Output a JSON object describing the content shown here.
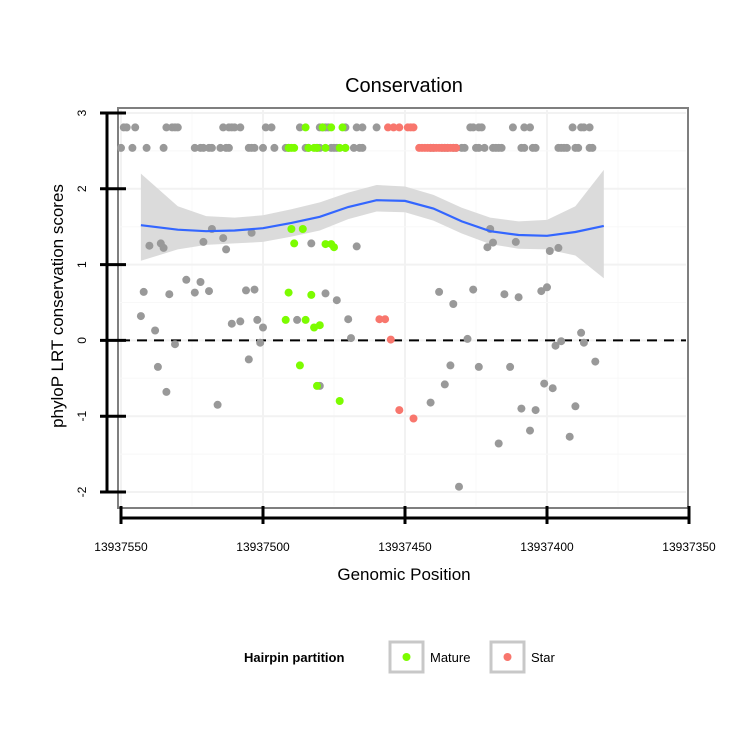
{
  "chart_data": {
    "type": "scatter",
    "title": "Conservation",
    "xlabel": "Genomic Position",
    "ylabel": "phyloP LRT conservation scores",
    "xlim": [
      13937550,
      13937350
    ],
    "x_reversed": true,
    "ylim": [
      -2.2,
      3.05
    ],
    "x_ticks": [
      13937550,
      13937500,
      13937450,
      13937400,
      13937350
    ],
    "x_tick_labels": [
      "13937550",
      "13937500",
      "13937450",
      "13937400",
      "13937350"
    ],
    "y_ticks": [
      -2,
      -1,
      0,
      1,
      2,
      3
    ],
    "y_tick_labels": [
      "-2",
      "-1",
      "0",
      "1",
      "2",
      "3"
    ],
    "reference_line": {
      "y": 0,
      "style": "dashed"
    },
    "legend": {
      "title": "Hairpin partition",
      "entries": [
        {
          "label": "Mature",
          "color": "#7cfc00"
        },
        {
          "label": "Star",
          "color": "#f8766d"
        }
      ]
    },
    "colors": {
      "other": "#999999",
      "mature": "#7cfc00",
      "star": "#f8766d",
      "smooth": "#3366ff",
      "band": "#d9d9d9"
    },
    "series": [
      {
        "name": "Other",
        "points": [
          [
            13937543,
            0.32
          ],
          [
            13937542,
            0.64
          ],
          [
            13937540,
            1.25
          ],
          [
            13937538,
            0.13
          ],
          [
            13937537,
            -0.35
          ],
          [
            13937536,
            1.28
          ],
          [
            13937535,
            1.22
          ],
          [
            13937534,
            -0.68
          ],
          [
            13937533,
            0.61
          ],
          [
            13937531,
            -0.05
          ],
          [
            13937527,
            0.8
          ],
          [
            13937524,
            0.63
          ],
          [
            13937522,
            0.77
          ],
          [
            13937521,
            1.3
          ],
          [
            13937519,
            0.65
          ],
          [
            13937518,
            1.47
          ],
          [
            13937516,
            -0.85
          ],
          [
            13937514,
            1.35
          ],
          [
            13937513,
            1.2
          ],
          [
            13937511,
            0.22
          ],
          [
            13937508,
            0.25
          ],
          [
            13937506,
            0.66
          ],
          [
            13937505,
            -0.25
          ],
          [
            13937504,
            1.42
          ],
          [
            13937503,
            0.67
          ],
          [
            13937502,
            0.27
          ],
          [
            13937501,
            -0.03
          ],
          [
            13937500,
            0.17
          ],
          [
            13937488,
            0.27
          ],
          [
            13937483,
            1.28
          ],
          [
            13937480,
            -0.6
          ],
          [
            13937478,
            0.62
          ],
          [
            13937474,
            0.53
          ],
          [
            13937470,
            0.28
          ],
          [
            13937469,
            0.03
          ],
          [
            13937467,
            1.24
          ],
          [
            13937441,
            -0.82
          ],
          [
            13937438,
            0.64
          ],
          [
            13937436,
            -0.58
          ],
          [
            13937434,
            -0.33
          ],
          [
            13937433,
            0.48
          ],
          [
            13937431,
            -1.93
          ],
          [
            13937428,
            0.02
          ],
          [
            13937426,
            0.67
          ],
          [
            13937424,
            -0.35
          ],
          [
            13937421,
            1.23
          ],
          [
            13937420,
            1.47
          ],
          [
            13937419,
            1.29
          ],
          [
            13937417,
            -1.36
          ],
          [
            13937415,
            0.61
          ],
          [
            13937413,
            -0.35
          ],
          [
            13937411,
            1.3
          ],
          [
            13937410,
            0.57
          ],
          [
            13937409,
            -0.9
          ],
          [
            13937406,
            -1.19
          ],
          [
            13937404,
            -0.92
          ],
          [
            13937402,
            0.65
          ],
          [
            13937401,
            -0.57
          ],
          [
            13937400,
            0.7
          ],
          [
            13937399,
            1.18
          ],
          [
            13937398,
            -0.63
          ],
          [
            13937397,
            -0.07
          ],
          [
            13937396,
            1.22
          ],
          [
            13937395,
            -0.01
          ],
          [
            13937392,
            -1.27
          ],
          [
            13937390,
            -0.87
          ],
          [
            13937388,
            0.1
          ],
          [
            13937387,
            -0.03
          ],
          [
            13937383,
            -0.28
          ],
          [
            13937549,
            2.81
          ],
          [
            13937548,
            2.81
          ],
          [
            13937545,
            2.81
          ],
          [
            13937534,
            2.81
          ],
          [
            13937532,
            2.81
          ],
          [
            13937531,
            2.81
          ],
          [
            13937530,
            2.81
          ],
          [
            13937514,
            2.81
          ],
          [
            13937512,
            2.81
          ],
          [
            13937511,
            2.81
          ],
          [
            13937510,
            2.81
          ],
          [
            13937508,
            2.81
          ],
          [
            13937499,
            2.81
          ],
          [
            13937497,
            2.81
          ],
          [
            13937487,
            2.81
          ],
          [
            13937480,
            2.81
          ],
          [
            13937479,
            2.81
          ],
          [
            13937478,
            2.81
          ],
          [
            13937477,
            2.81
          ],
          [
            13937471,
            2.81
          ],
          [
            13937467,
            2.81
          ],
          [
            13937465,
            2.81
          ],
          [
            13937460,
            2.81
          ],
          [
            13937427,
            2.81
          ],
          [
            13937426,
            2.81
          ],
          [
            13937424,
            2.81
          ],
          [
            13937423,
            2.81
          ],
          [
            13937412,
            2.81
          ],
          [
            13937408,
            2.81
          ],
          [
            13937406,
            2.81
          ],
          [
            13937391,
            2.81
          ],
          [
            13937388,
            2.81
          ],
          [
            13937387,
            2.81
          ],
          [
            13937385,
            2.81
          ],
          [
            13937550,
            2.54
          ],
          [
            13937546,
            2.54
          ],
          [
            13937541,
            2.54
          ],
          [
            13937535,
            2.54
          ],
          [
            13937524,
            2.54
          ],
          [
            13937522,
            2.54
          ],
          [
            13937521,
            2.54
          ],
          [
            13937519,
            2.54
          ],
          [
            13937518,
            2.54
          ],
          [
            13937515,
            2.54
          ],
          [
            13937513,
            2.54
          ],
          [
            13937512,
            2.54
          ],
          [
            13937505,
            2.54
          ],
          [
            13937504,
            2.54
          ],
          [
            13937503,
            2.54
          ],
          [
            13937500,
            2.54
          ],
          [
            13937496,
            2.54
          ],
          [
            13937492,
            2.54
          ],
          [
            13937491,
            2.54
          ],
          [
            13937485,
            2.54
          ],
          [
            13937484,
            2.54
          ],
          [
            13937481,
            2.54
          ],
          [
            13937480,
            2.54
          ],
          [
            13937476,
            2.54
          ],
          [
            13937475,
            2.54
          ],
          [
            13937474,
            2.54
          ],
          [
            13937471,
            2.54
          ],
          [
            13937468,
            2.54
          ],
          [
            13937466,
            2.54
          ],
          [
            13937465,
            2.54
          ],
          [
            13937441,
            2.54
          ],
          [
            13937440,
            2.54
          ],
          [
            13937437,
            2.54
          ],
          [
            13937436,
            2.54
          ],
          [
            13937435,
            2.54
          ],
          [
            13937433,
            2.54
          ],
          [
            13937432,
            2.54
          ],
          [
            13937430,
            2.54
          ],
          [
            13937429,
            2.54
          ],
          [
            13937425,
            2.54
          ],
          [
            13937424,
            2.54
          ],
          [
            13937422,
            2.54
          ],
          [
            13937419,
            2.54
          ],
          [
            13937418,
            2.54
          ],
          [
            13937417,
            2.54
          ],
          [
            13937416,
            2.54
          ],
          [
            13937409,
            2.54
          ],
          [
            13937408,
            2.54
          ],
          [
            13937405,
            2.54
          ],
          [
            13937404,
            2.54
          ],
          [
            13937396,
            2.54
          ],
          [
            13937395,
            2.54
          ],
          [
            13937394,
            2.54
          ],
          [
            13937393,
            2.54
          ],
          [
            13937390,
            2.54
          ],
          [
            13937389,
            2.54
          ],
          [
            13937385,
            2.54
          ],
          [
            13937384,
            2.54
          ]
        ]
      },
      {
        "name": "Mature",
        "points": [
          [
            13937491,
            0.63
          ],
          [
            13937492,
            0.27
          ],
          [
            13937490,
            1.47
          ],
          [
            13937489,
            1.28
          ],
          [
            13937487,
            -0.33
          ],
          [
            13937486,
            1.47
          ],
          [
            13937485,
            0.27
          ],
          [
            13937483,
            0.6
          ],
          [
            13937482,
            0.17
          ],
          [
            13937481,
            -0.6
          ],
          [
            13937480,
            0.2
          ],
          [
            13937478,
            1.27
          ],
          [
            13937476,
            1.27
          ],
          [
            13937475,
            1.23
          ],
          [
            13937473,
            -0.8
          ],
          [
            13937485,
            2.81
          ],
          [
            13937479,
            2.81
          ],
          [
            13937476,
            2.81
          ],
          [
            13937472,
            2.81
          ],
          [
            13937491,
            2.54
          ],
          [
            13937490,
            2.54
          ],
          [
            13937489,
            2.54
          ],
          [
            13937484,
            2.54
          ],
          [
            13937482,
            2.54
          ],
          [
            13937481,
            2.54
          ],
          [
            13937478,
            2.54
          ],
          [
            13937473,
            2.54
          ],
          [
            13937471,
            2.54
          ]
        ]
      },
      {
        "name": "Star",
        "points": [
          [
            13937459,
            0.28
          ],
          [
            13937457,
            0.28
          ],
          [
            13937455,
            0.01
          ],
          [
            13937452,
            -0.92
          ],
          [
            13937447,
            -1.03
          ],
          [
            13937456,
            2.81
          ],
          [
            13937454,
            2.81
          ],
          [
            13937452,
            2.81
          ],
          [
            13937449,
            2.81
          ],
          [
            13937448,
            2.81
          ],
          [
            13937447,
            2.81
          ],
          [
            13937445,
            2.54
          ],
          [
            13937444,
            2.54
          ],
          [
            13937443,
            2.54
          ],
          [
            13937442,
            2.54
          ],
          [
            13937441,
            2.54
          ],
          [
            13937440,
            2.54
          ],
          [
            13937439,
            2.54
          ],
          [
            13937438,
            2.54
          ],
          [
            13937437,
            2.54
          ],
          [
            13937436,
            2.54
          ],
          [
            13937435,
            2.54
          ],
          [
            13937434,
            2.54
          ],
          [
            13937433,
            2.54
          ],
          [
            13937432,
            2.54
          ]
        ]
      }
    ],
    "smooth": {
      "x": [
        13937543,
        13937530,
        13937520,
        13937510,
        13937500,
        13937490,
        13937480,
        13937470,
        13937460,
        13937450,
        13937440,
        13937430,
        13937420,
        13937410,
        13937400,
        13937390,
        13937380
      ],
      "y": [
        1.52,
        1.46,
        1.44,
        1.45,
        1.48,
        1.55,
        1.63,
        1.76,
        1.85,
        1.84,
        1.74,
        1.57,
        1.44,
        1.39,
        1.38,
        1.43,
        1.51
      ],
      "lower": [
        1.05,
        1.2,
        1.26,
        1.28,
        1.3,
        1.37,
        1.45,
        1.6,
        1.7,
        1.69,
        1.58,
        1.41,
        1.27,
        1.21,
        1.2,
        1.12,
        0.82
      ],
      "upper": [
        2.2,
        1.77,
        1.64,
        1.62,
        1.65,
        1.73,
        1.82,
        1.95,
        2.05,
        2.03,
        1.92,
        1.75,
        1.62,
        1.57,
        1.59,
        1.77,
        2.25
      ]
    }
  }
}
